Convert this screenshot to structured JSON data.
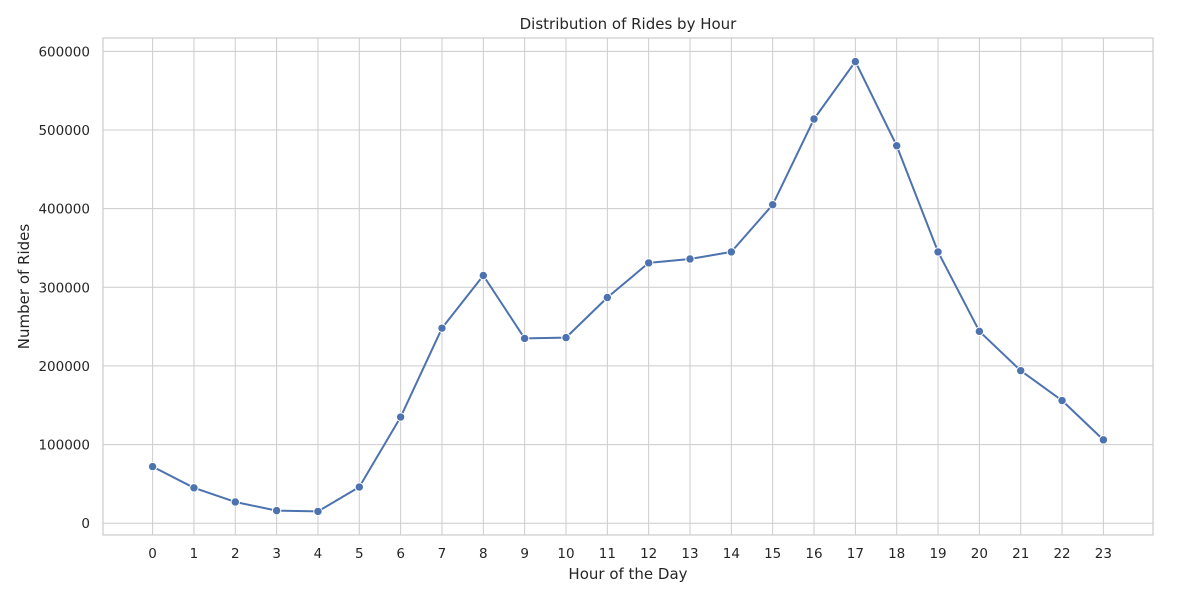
{
  "chart_data": {
    "type": "line",
    "title": "Distribution of Rides by Hour",
    "xlabel": "Hour of the Day",
    "ylabel": "Number of Rides",
    "x": [
      0,
      1,
      2,
      3,
      4,
      5,
      6,
      7,
      8,
      9,
      10,
      11,
      12,
      13,
      14,
      15,
      16,
      17,
      18,
      19,
      20,
      21,
      22,
      23
    ],
    "x_tick_labels": [
      "0",
      "1",
      "2",
      "3",
      "4",
      "5",
      "6",
      "7",
      "8",
      "9",
      "10",
      "11",
      "12",
      "13",
      "14",
      "15",
      "16",
      "17",
      "18",
      "19",
      "20",
      "21",
      "22",
      "23"
    ],
    "y_ticks": [
      0,
      100000,
      200000,
      300000,
      400000,
      500000,
      600000
    ],
    "y_tick_labels": [
      "0",
      "100000",
      "200000",
      "300000",
      "400000",
      "500000",
      "600000"
    ],
    "xlim": [
      -1.2,
      24.2
    ],
    "ylim": [
      -15000,
      617000
    ],
    "grid": true,
    "legend": "none",
    "series": [
      {
        "color": "#4c72b0",
        "marker": "circle",
        "values": [
          72000,
          45000,
          27000,
          16000,
          15000,
          46000,
          135000,
          248000,
          315000,
          235000,
          236000,
          287000,
          331000,
          336000,
          345000,
          405000,
          514000,
          587000,
          480000,
          345000,
          244000,
          194000,
          156000,
          106000
        ]
      }
    ]
  }
}
